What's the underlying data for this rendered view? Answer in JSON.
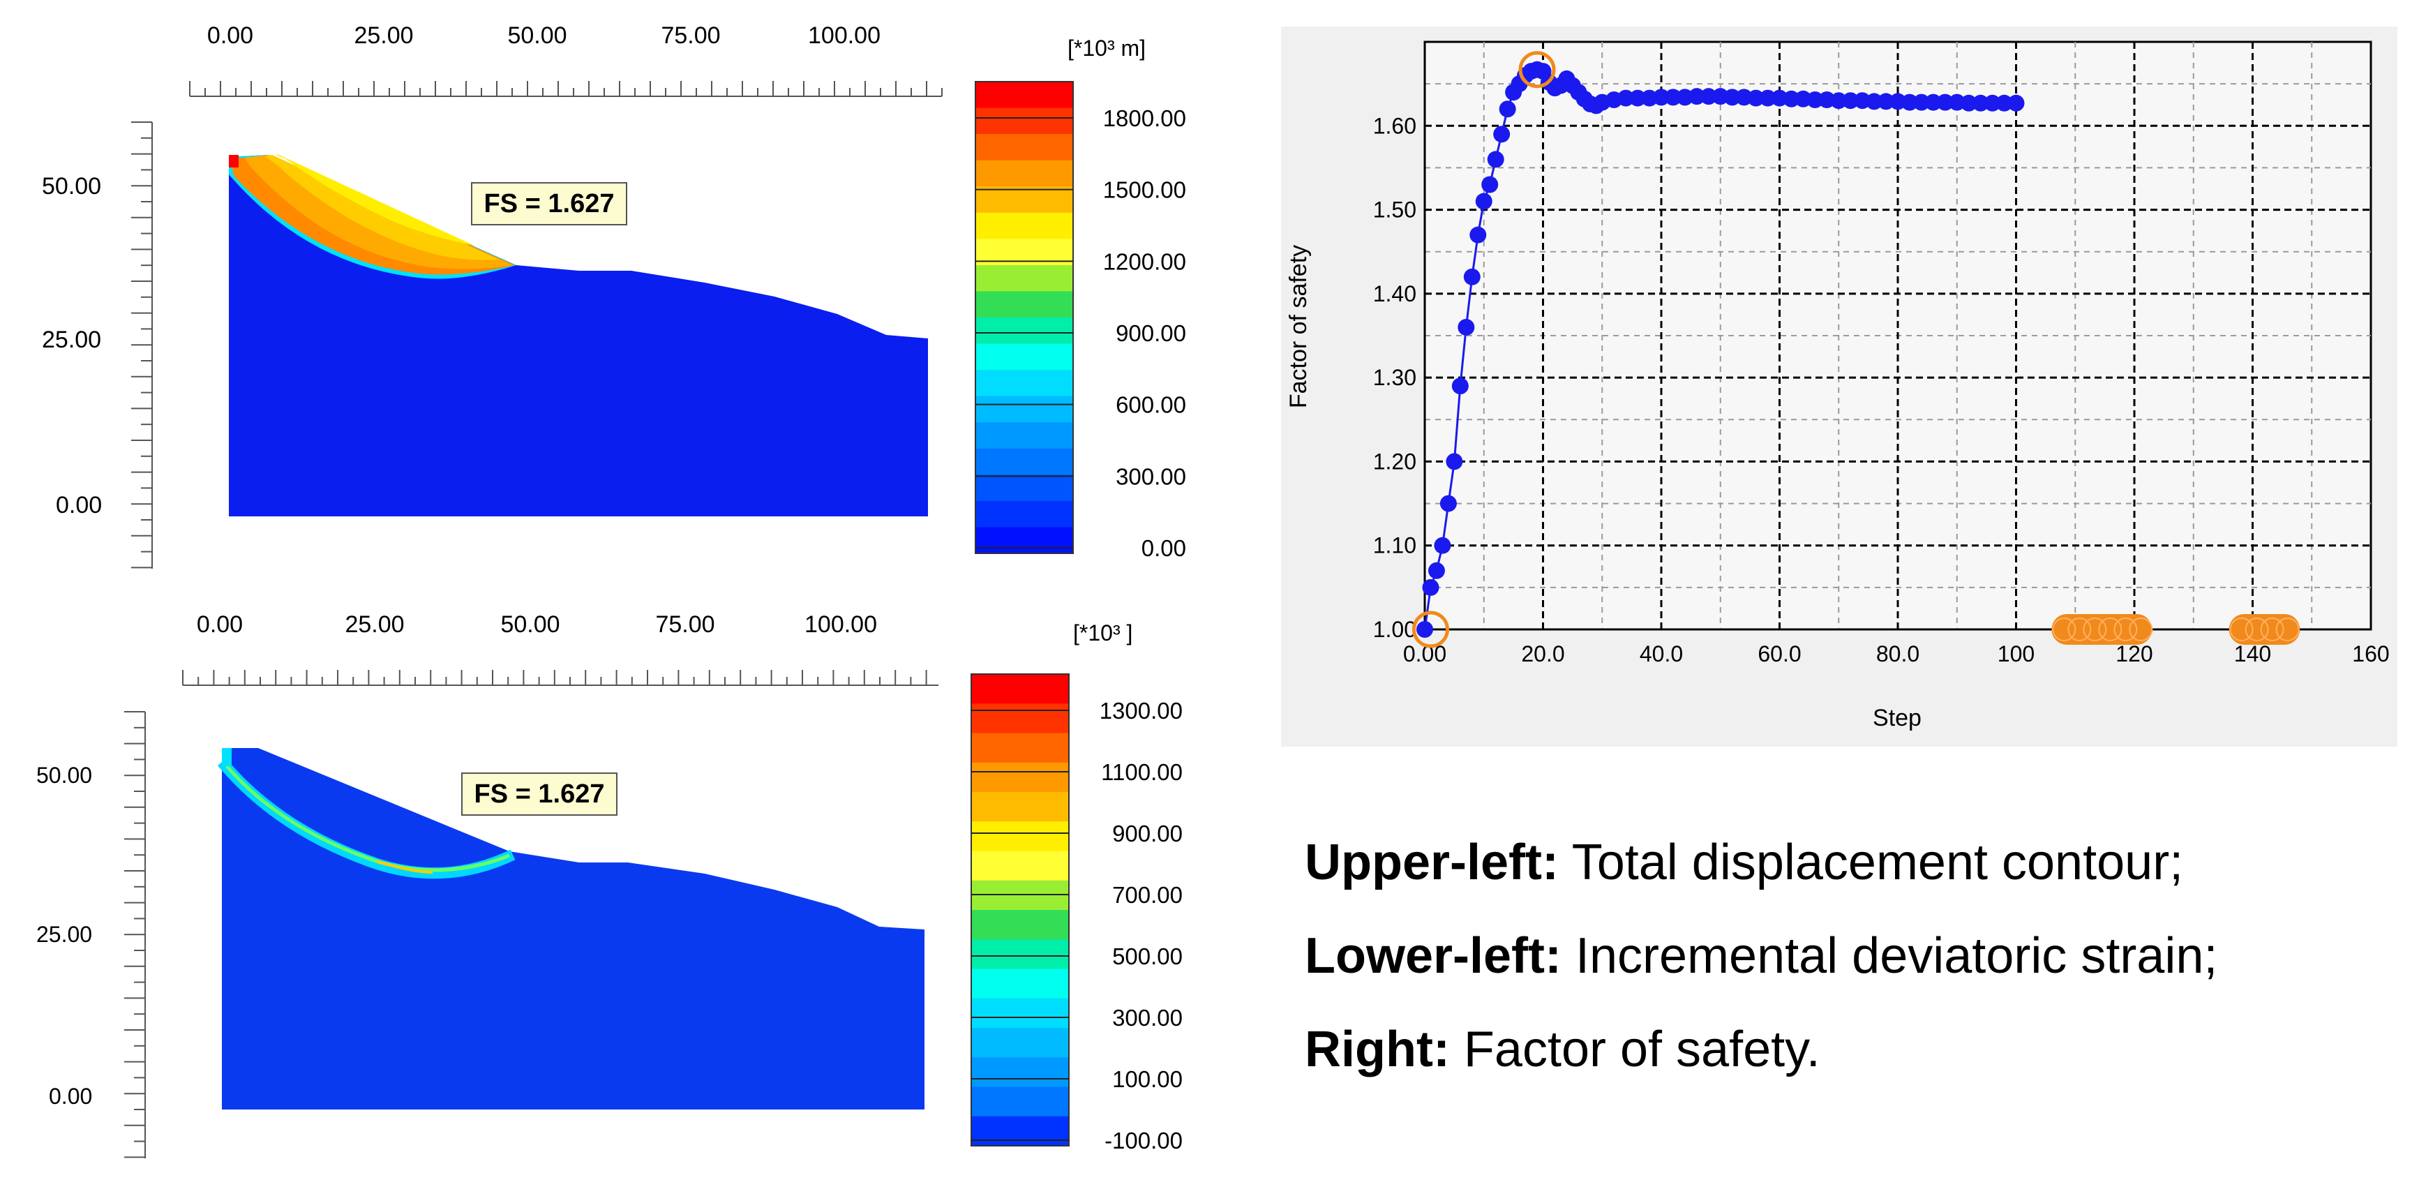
{
  "panels": {
    "upper_left": {
      "x_ticks": [
        "0.00",
        "25.00",
        "50.00",
        "75.00",
        "100.00"
      ],
      "y_ticks": [
        "50.00",
        "25.00",
        "0.00"
      ],
      "fs_label": "FS = 1.627",
      "legend": {
        "unit": "[*10³ m]",
        "labels": [
          "1800.00",
          "1500.00",
          "1200.00",
          "900.00",
          "600.00",
          "300.00",
          "0.00"
        ],
        "colors": [
          "#ff0000",
          "#ff3300",
          "#ff6600",
          "#ff9900",
          "#ffbb00",
          "#ffee00",
          "#ffff33",
          "#99ee33",
          "#33dd55",
          "#00eeaa",
          "#00ffee",
          "#00ddff",
          "#00bbff",
          "#0099ff",
          "#0077ff",
          "#0055ff",
          "#0033ff",
          "#0011ff"
        ]
      }
    },
    "lower_left": {
      "x_ticks": [
        "0.00",
        "25.00",
        "50.00",
        "75.00",
        "100.00"
      ],
      "y_ticks": [
        "50.00",
        "25.00",
        "0.00"
      ],
      "fs_label": "FS = 1.627",
      "legend": {
        "unit": "[*10³ ]",
        "labels": [
          "1300.00",
          "1100.00",
          "900.00",
          "700.00",
          "500.00",
          "300.00",
          "100.00",
          "-100.00"
        ],
        "colors": [
          "#ff0000",
          "#ff3300",
          "#ff6600",
          "#ff9900",
          "#ffbb00",
          "#ffee00",
          "#ffff33",
          "#99ee33",
          "#33dd55",
          "#00eeaa",
          "#00ffee",
          "#00ddff",
          "#00bbff",
          "#0099ff",
          "#0077ff",
          "#0033ff"
        ]
      }
    }
  },
  "chart_data": {
    "type": "line",
    "xlabel": "Step",
    "ylabel": "Factor of safety",
    "xlim": [
      0,
      160
    ],
    "ylim": [
      1.0,
      1.7
    ],
    "x_tick_labels": [
      "0.00",
      "20.0",
      "40.0",
      "60.0",
      "80.0",
      "100",
      "120",
      "140",
      "160"
    ],
    "y_tick_labels": [
      "1.00",
      "1.10",
      "1.20",
      "1.30",
      "1.40",
      "1.50",
      "1.60"
    ],
    "grid": true,
    "series": [
      {
        "x": [
          0,
          1,
          2,
          3,
          4,
          5,
          6,
          7,
          8,
          9,
          10,
          11,
          12,
          13,
          14,
          15,
          16,
          17,
          18,
          19,
          20,
          21,
          22,
          23,
          24,
          25,
          26,
          27,
          28,
          29,
          30,
          32,
          34,
          36,
          38,
          40,
          42,
          44,
          46,
          48,
          50,
          52,
          54,
          56,
          58,
          60,
          62,
          64,
          66,
          68,
          70,
          72,
          74,
          76,
          78,
          80,
          82,
          84,
          86,
          88,
          90,
          92,
          94,
          96,
          98,
          100
        ],
        "y": [
          1.0,
          1.05,
          1.07,
          1.1,
          1.15,
          1.2,
          1.29,
          1.36,
          1.42,
          1.47,
          1.51,
          1.53,
          1.56,
          1.59,
          1.62,
          1.64,
          1.65,
          1.66,
          1.665,
          1.667,
          1.665,
          1.652,
          1.645,
          1.648,
          1.656,
          1.648,
          1.64,
          1.632,
          1.626,
          1.624,
          1.628,
          1.631,
          1.633,
          1.633,
          1.633,
          1.634,
          1.634,
          1.634,
          1.635,
          1.635,
          1.635,
          1.634,
          1.634,
          1.633,
          1.633,
          1.633,
          1.632,
          1.632,
          1.631,
          1.631,
          1.63,
          1.63,
          1.63,
          1.629,
          1.629,
          1.629,
          1.628,
          1.628,
          1.628,
          1.628,
          1.628,
          1.627,
          1.627,
          1.627,
          1.627,
          1.627
        ]
      }
    ],
    "highlight_markers": [
      {
        "x": 19,
        "y": 1.667
      },
      {
        "x": 1,
        "y": 1.0
      }
    ],
    "highlight_ranges": [
      {
        "x_from": 106,
        "x_to": 123,
        "y": 1.0
      },
      {
        "x_from": 136,
        "x_to": 148,
        "y": 1.0
      }
    ],
    "colors": {
      "line": "#1a1aee",
      "highlight": "#f08a1c",
      "plot_bg": "#f0f0f0"
    }
  },
  "captions": [
    {
      "bold": "Upper-left:",
      "text": " Total displacement contour;"
    },
    {
      "bold": "Lower-left:",
      "text": " Incremental deviatoric strain;"
    },
    {
      "bold": "Right:",
      "text": " Factor of safety."
    }
  ]
}
